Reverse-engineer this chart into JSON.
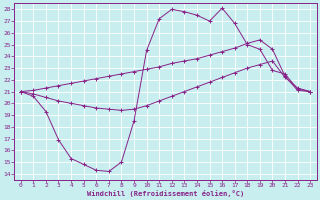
{
  "xlabel": "Windchill (Refroidissement éolien,°C)",
  "xlim": [
    -0.5,
    23.5
  ],
  "ylim": [
    13.5,
    28.5
  ],
  "yticks": [
    14,
    15,
    16,
    17,
    18,
    19,
    20,
    21,
    22,
    23,
    24,
    25,
    26,
    27,
    28
  ],
  "xticks": [
    0,
    1,
    2,
    3,
    4,
    5,
    6,
    7,
    8,
    9,
    10,
    11,
    12,
    13,
    14,
    15,
    16,
    17,
    18,
    19,
    20,
    21,
    22,
    23
  ],
  "bg_color": "#c8eef0",
  "grid_color": "#ffffff",
  "line_color": "#882288",
  "line1_x": [
    0,
    1,
    2,
    3,
    4,
    5,
    6,
    7,
    8,
    9,
    10,
    11,
    12,
    13,
    14,
    15,
    16,
    17,
    18,
    19,
    20,
    21,
    22,
    23
  ],
  "line1_y": [
    21.0,
    20.6,
    19.3,
    16.9,
    15.3,
    14.8,
    14.3,
    14.2,
    15.0,
    18.5,
    24.5,
    27.2,
    28.0,
    27.8,
    27.5,
    27.0,
    28.1,
    26.8,
    25.0,
    24.6,
    22.8,
    22.5,
    21.2,
    21.0
  ],
  "line2_x": [
    0,
    1,
    2,
    3,
    4,
    5,
    6,
    7,
    8,
    9,
    10,
    11,
    12,
    13,
    14,
    15,
    16,
    17,
    18,
    19,
    20,
    21,
    22,
    23
  ],
  "line2_y": [
    21.0,
    21.1,
    21.3,
    21.5,
    21.7,
    21.9,
    22.1,
    22.3,
    22.5,
    22.7,
    22.9,
    23.1,
    23.4,
    23.6,
    23.8,
    24.1,
    24.4,
    24.7,
    25.1,
    25.4,
    24.6,
    22.3,
    21.1,
    21.0
  ],
  "line3_x": [
    0,
    1,
    2,
    3,
    4,
    5,
    6,
    7,
    8,
    9,
    10,
    11,
    12,
    13,
    14,
    15,
    16,
    17,
    18,
    19,
    20,
    21,
    22,
    23
  ],
  "line3_y": [
    21.0,
    20.8,
    20.5,
    20.2,
    20.0,
    19.8,
    19.6,
    19.5,
    19.4,
    19.5,
    19.8,
    20.2,
    20.6,
    21.0,
    21.4,
    21.8,
    22.2,
    22.6,
    23.0,
    23.3,
    23.6,
    22.2,
    21.3,
    21.0
  ]
}
